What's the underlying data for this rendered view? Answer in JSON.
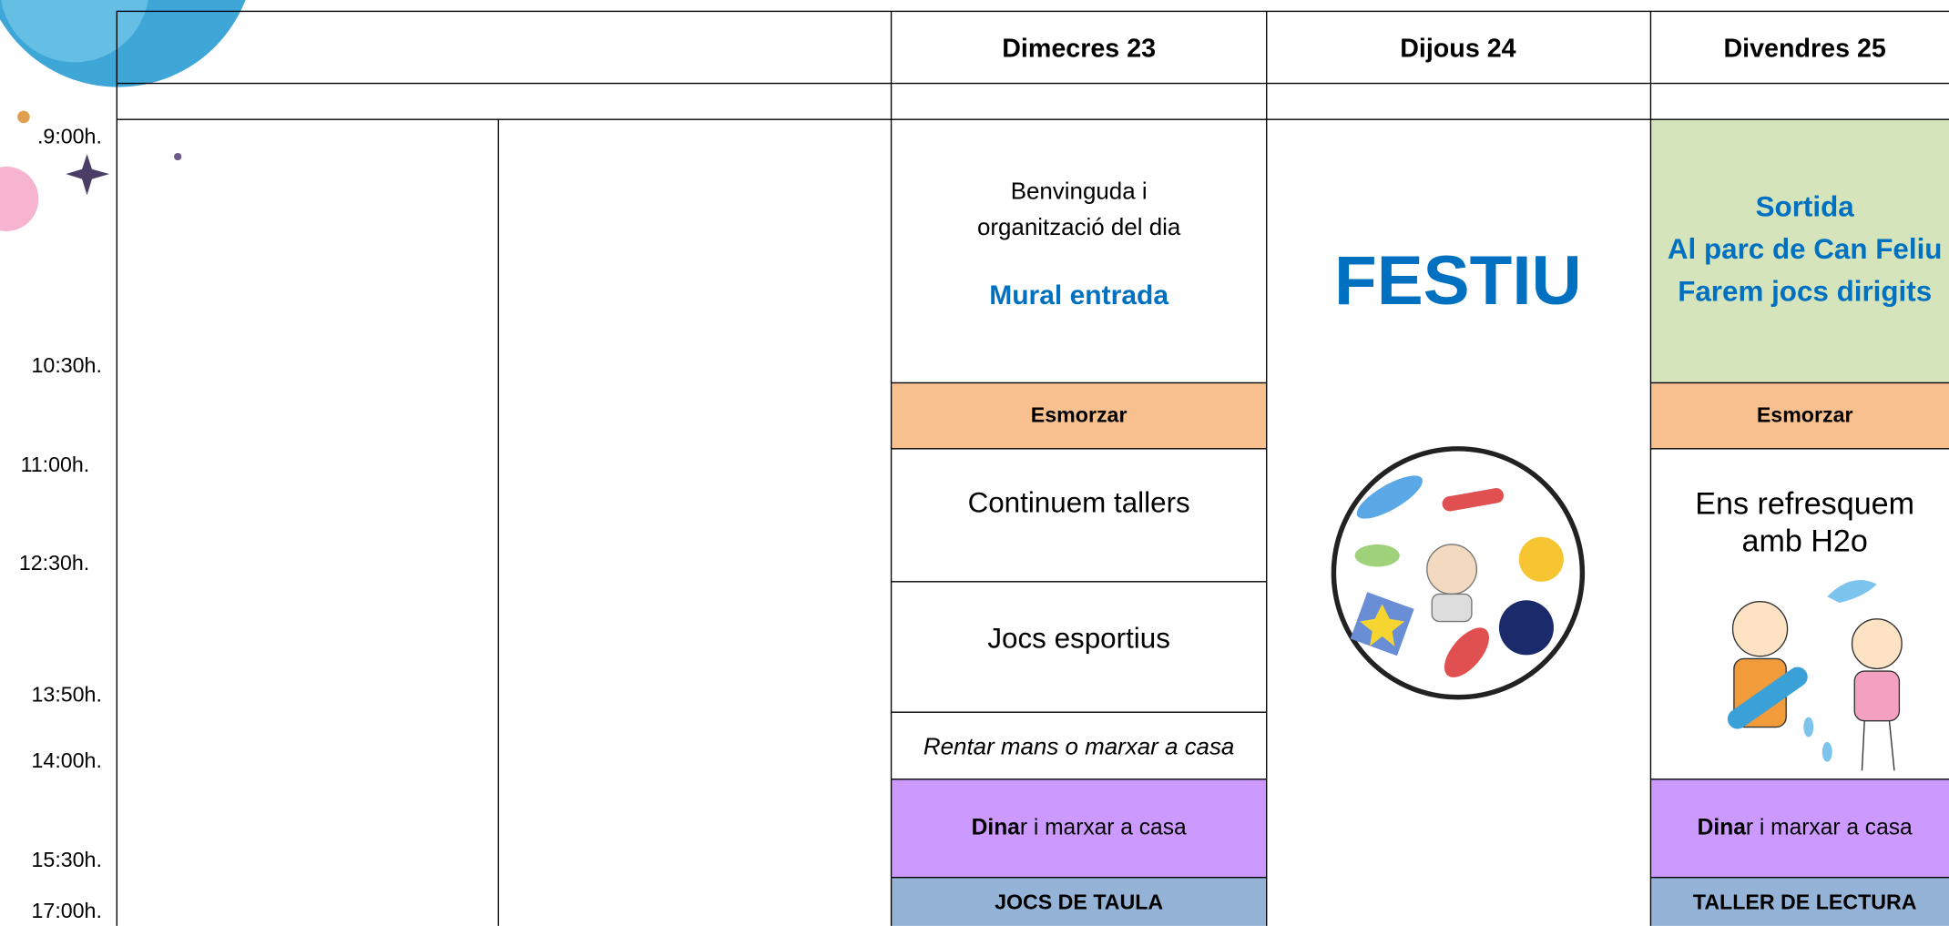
{
  "header": {
    "days": [
      "Dimecres 23",
      "Dijous 24",
      "Divendres 25"
    ]
  },
  "times": [
    ".9:00h.",
    "10:30h.",
    "11:00h.",
    "12:30h.",
    "13:50h.",
    "14:00h.",
    "15:30h.",
    "17:00h."
  ],
  "wednesday": {
    "welcome": [
      "Benvinguda  i",
      "organització del dia"
    ],
    "mural": "Mural entrada",
    "breakfast": "Esmorzar",
    "workshops": "Continuem tallers",
    "sports": "Jocs esportius",
    "wash": "Rentar mans o marxar a casa",
    "lunch": {
      "bold": "Dina",
      "rest": "r i marxar a casa"
    },
    "afternoon": "JOCS DE TAULA"
  },
  "thursday": {
    "holiday": "FESTIU"
  },
  "friday": {
    "outing": [
      "Sortida",
      "Al parc de Can Feliu",
      "Farem jocs dirigits"
    ],
    "breakfast": "Esmorzar",
    "water": [
      "Ens refresquem",
      "amb H2o"
    ],
    "lunch": {
      "bold": "Dina",
      "rest": "r i marxar a casa"
    },
    "afternoon": "TALLER DE LECTURA"
  }
}
